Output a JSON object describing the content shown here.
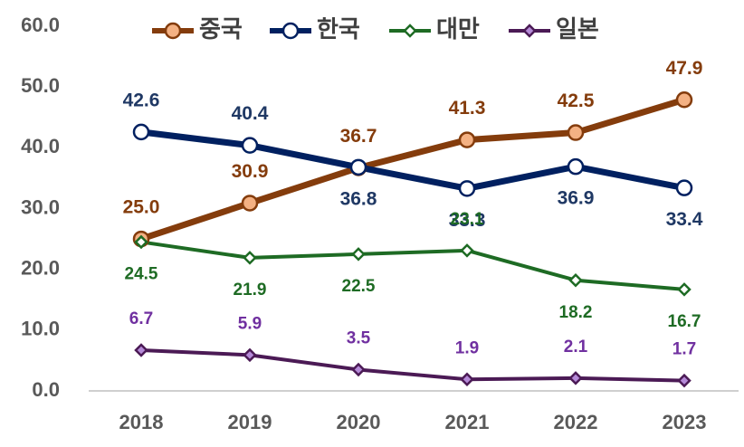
{
  "chart_data": {
    "type": "line",
    "categories": [
      "2018",
      "2019",
      "2020",
      "2021",
      "2022",
      "2023"
    ],
    "series": [
      {
        "name": "중국",
        "color": "#843c0c",
        "marker": "circle",
        "values": [
          25.0,
          30.9,
          36.7,
          41.3,
          42.5,
          47.9
        ],
        "value_labels": [
          "25.0",
          "30.9",
          "36.7",
          "41.3",
          "42.5",
          "47.9"
        ]
      },
      {
        "name": "한국",
        "color": "#002060",
        "marker": "circle",
        "values": [
          42.6,
          40.4,
          36.8,
          33.3,
          36.9,
          33.4
        ]
      },
      {
        "name": "대만",
        "color": "#1e6b24",
        "marker": "diamond",
        "values": [
          24.5,
          21.9,
          22.5,
          23.1,
          18.2,
          16.7
        ]
      },
      {
        "name": "일본",
        "color": "#4b1a55",
        "marker": "diamond",
        "values": [
          6.7,
          5.9,
          3.5,
          1.9,
          2.1,
          1.7
        ]
      }
    ],
    "ylim": [
      0,
      60
    ],
    "yticks": [
      {
        "value": 0,
        "label": "0.0"
      },
      {
        "value": 10,
        "label": "10.0"
      },
      {
        "value": 20,
        "label": "20.0"
      },
      {
        "value": 30,
        "label": "30.0"
      },
      {
        "value": 40,
        "label": "40.0"
      },
      {
        "value": 50,
        "label": "50.0"
      },
      {
        "value": 60,
        "label": "60.0"
      }
    ],
    "legend": "top",
    "grid": false
  }
}
